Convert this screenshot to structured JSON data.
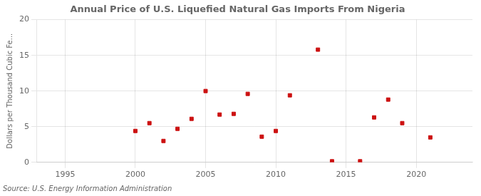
{
  "chart_data": {
    "type": "scatter",
    "title": "Annual Price of U.S. Liquefied Natural Gas Imports From Nigeria",
    "y_label": "Dollars per Thousand Cubic Fe...",
    "annotation": "Source: U.S. Energy Information Administration",
    "x": [
      2000,
      2001,
      2002,
      2003,
      2004,
      2005,
      2006,
      2007,
      2008,
      2009,
      2010,
      2011,
      2013,
      2014,
      2016,
      2017,
      2018,
      2019,
      2021
    ],
    "values": [
      4.4,
      5.5,
      3.0,
      4.7,
      6.1,
      10.0,
      6.7,
      6.8,
      9.6,
      3.6,
      4.4,
      9.4,
      15.8,
      0.15,
      0.15,
      6.3,
      8.8,
      5.5,
      3.5
    ],
    "color": "#cc1111",
    "marker": "square",
    "xlim": [
      1993,
      2024
    ],
    "ylim": [
      0,
      20
    ],
    "xticks": [
      1995,
      2000,
      2005,
      2010,
      2015,
      2020
    ],
    "yticks": [
      0,
      5,
      10,
      15,
      20
    ],
    "grid": true
  }
}
